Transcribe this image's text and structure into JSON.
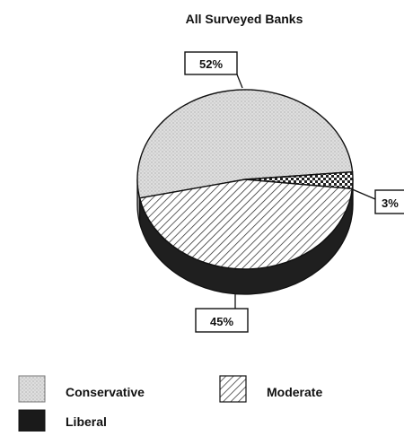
{
  "chart_data": {
    "type": "pie",
    "title": "All Surveyed Banks",
    "categories": [
      "Conservative",
      "Moderate",
      "Liberal"
    ],
    "values": [
      52,
      45,
      3
    ],
    "data_labels": [
      "52%",
      "45%",
      "3%"
    ],
    "legend": {
      "placement": "bottom",
      "entries": [
        {
          "label": "Conservative",
          "pattern": "dotted-light"
        },
        {
          "label": "Moderate",
          "pattern": "diagonal-hatch"
        },
        {
          "label": "Liberal",
          "pattern": "solid-dark"
        }
      ]
    },
    "style": "3d-pie"
  },
  "colors": {
    "conservative": "#d9d9d9",
    "moderate": "#ffffff",
    "liberal": "#1a1a1a",
    "outline": "#111111"
  }
}
